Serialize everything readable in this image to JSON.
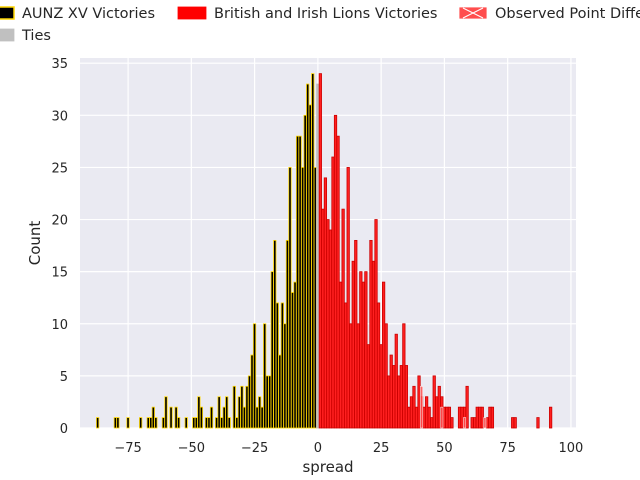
{
  "chart_data": {
    "type": "bar",
    "title": "",
    "xlabel": "spread",
    "ylabel": "Count",
    "xlim": [
      -94,
      102
    ],
    "ylim": [
      0,
      35.5
    ],
    "x_ticks": [
      "−75",
      "−50",
      "−25",
      "0",
      "25",
      "50",
      "75",
      "100"
    ],
    "y_ticks": [
      "0",
      "5",
      "10",
      "15",
      "20",
      "25",
      "30",
      "35"
    ],
    "grid": true,
    "legend": {
      "placement": "top",
      "entries": [
        {
          "label": "AUNZ XV Victories",
          "color": "#000000",
          "edge": "#ffd700"
        },
        {
          "label": "Ties",
          "color": "#c0c0c0",
          "edge": "#c0c0c0"
        },
        {
          "label": "British and Irish Lions Victories",
          "color": "#ff0000",
          "edge": "#ff0000"
        },
        {
          "label": "Observed Point Differential",
          "color": "#ff4d4d",
          "edge": "#ffffff"
        }
      ]
    },
    "colors": {
      "background": "#eaeaf2",
      "grid": "#ffffff",
      "aunz": "#000000",
      "aunz_edge": "#ffd700",
      "ties": "#c0c0c0",
      "lions": "#ff2020",
      "lions_edge": "#cc0000"
    },
    "series": [
      {
        "name": "AUNZ XV Victories",
        "x": [
          -87,
          -80,
          -79,
          -75,
          -70,
          -67,
          -66,
          -65,
          -64,
          -61,
          -60,
          -58,
          -56,
          -55,
          -52,
          -49,
          -48,
          -47,
          -46,
          -44,
          -43,
          -42,
          -40,
          -39,
          -38,
          -37,
          -36,
          -35,
          -33,
          -32,
          -31,
          -30,
          -29,
          -28,
          -27,
          -26,
          -25,
          -24,
          -23,
          -22,
          -21,
          -20,
          -19,
          -18,
          -17,
          -16,
          -15,
          -14,
          -13,
          -12,
          -11,
          -10,
          -9,
          -8,
          -7,
          -6,
          -5,
          -4,
          -3,
          -2,
          -1
        ],
        "values": [
          1,
          1,
          1,
          1,
          1,
          1,
          1,
          2,
          1,
          1,
          3,
          2,
          2,
          1,
          1,
          1,
          1,
          3,
          2,
          1,
          1,
          2,
          1,
          3,
          1,
          2,
          3,
          1,
          4,
          1,
          3,
          4,
          2,
          4,
          5,
          7,
          10,
          2,
          3,
          2,
          10,
          5,
          5,
          15,
          18,
          12,
          7,
          12,
          10,
          18,
          25,
          13,
          14,
          28,
          28,
          25,
          30,
          33,
          31,
          34,
          25
        ]
      },
      {
        "name": "Ties",
        "x": [
          0
        ],
        "values": [
          33
        ]
      },
      {
        "name": "British and Irish Lions Victories",
        "x": [
          1,
          2,
          3,
          4,
          5,
          6,
          7,
          8,
          9,
          10,
          11,
          12,
          13,
          14,
          15,
          16,
          17,
          18,
          19,
          20,
          21,
          22,
          23,
          24,
          25,
          26,
          27,
          28,
          29,
          30,
          31,
          32,
          33,
          34,
          35,
          36,
          37,
          38,
          39,
          40,
          41,
          42,
          43,
          44,
          45,
          46,
          47,
          48,
          49,
          50,
          51,
          52,
          53,
          56,
          57,
          58,
          59,
          61,
          62,
          63,
          64,
          65,
          67,
          68,
          69,
          77,
          78,
          87,
          92
        ],
        "values": [
          34,
          21,
          24,
          20,
          19,
          26,
          30,
          28,
          14,
          21,
          12,
          25,
          10,
          16,
          18,
          10,
          15,
          14,
          15,
          8,
          18,
          16,
          20,
          12,
          8,
          14,
          10,
          5,
          7,
          6,
          9,
          5,
          6,
          10,
          6,
          2,
          3,
          4,
          2,
          5,
          3,
          2,
          3,
          2,
          1,
          5,
          3,
          4,
          3,
          2,
          2,
          2,
          1,
          2,
          2,
          2,
          4,
          1,
          1,
          2,
          2,
          2,
          1,
          2,
          2,
          1,
          1,
          1,
          2
        ]
      },
      {
        "name": "Observed Point Differential",
        "x": [
          41,
          49,
          58,
          66
        ],
        "values": [
          4,
          2,
          1,
          1
        ]
      }
    ]
  }
}
